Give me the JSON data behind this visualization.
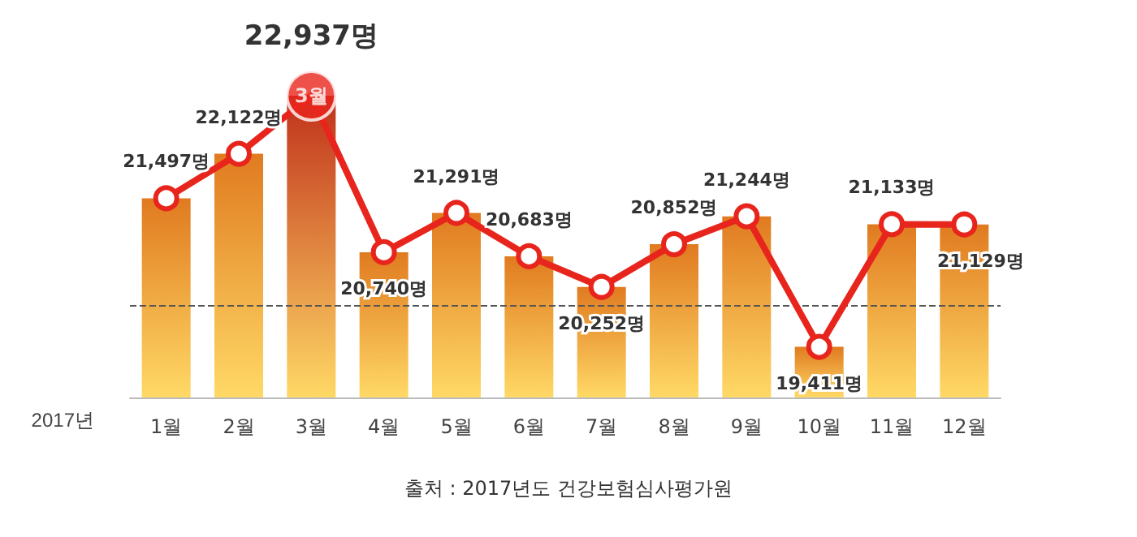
{
  "chart_data": {
    "type": "bar",
    "xlabel": "2017년",
    "categories": [
      "1월",
      "2월",
      "3월",
      "4월",
      "5월",
      "6월",
      "7월",
      "8월",
      "9월",
      "10월",
      "11월",
      "12월"
    ],
    "series": [
      {
        "colors": [
          "#e07a20",
          "#e07a20",
          "#c0301a",
          "#e07a20",
          "#e07a20",
          "#e07a20",
          "#e07a20",
          "#e07a20",
          "#e07a20",
          "#e07a20",
          "#e07a20",
          "#e07a20"
        ],
        "values": [
          21497,
          22122,
          22937,
          20740,
          21291,
          20683,
          20252,
          20852,
          21244,
          19411,
          21133,
          21129
        ]
      },
      {
        "type": "line",
        "color": "#e8251d",
        "marker": "circle",
        "values": [
          21497,
          22122,
          22937,
          20740,
          21291,
          20683,
          20252,
          20852,
          21244,
          19411,
          21133,
          21129
        ],
        "value_labels": [
          "21,497명",
          "22,122명",
          "22,937명",
          "20,740명",
          "21,291명",
          "20,683명",
          "20,252명",
          "20,852명",
          "21,244명",
          "19,411명",
          "21,133명",
          "21,129명"
        ]
      }
    ],
    "ylim": [
      18700,
      22937
    ],
    "tick_labels": "x",
    "grid": false,
    "ref_lines": [
      {
        "axis": "y",
        "value": 20000,
        "color": "#555555",
        "line_style": "dashed"
      }
    ],
    "annotations": [
      {
        "text": "3월",
        "x": "3월",
        "y": 22937
      },
      "출처 : 2017년도 건강보험심사평가원"
    ]
  }
}
